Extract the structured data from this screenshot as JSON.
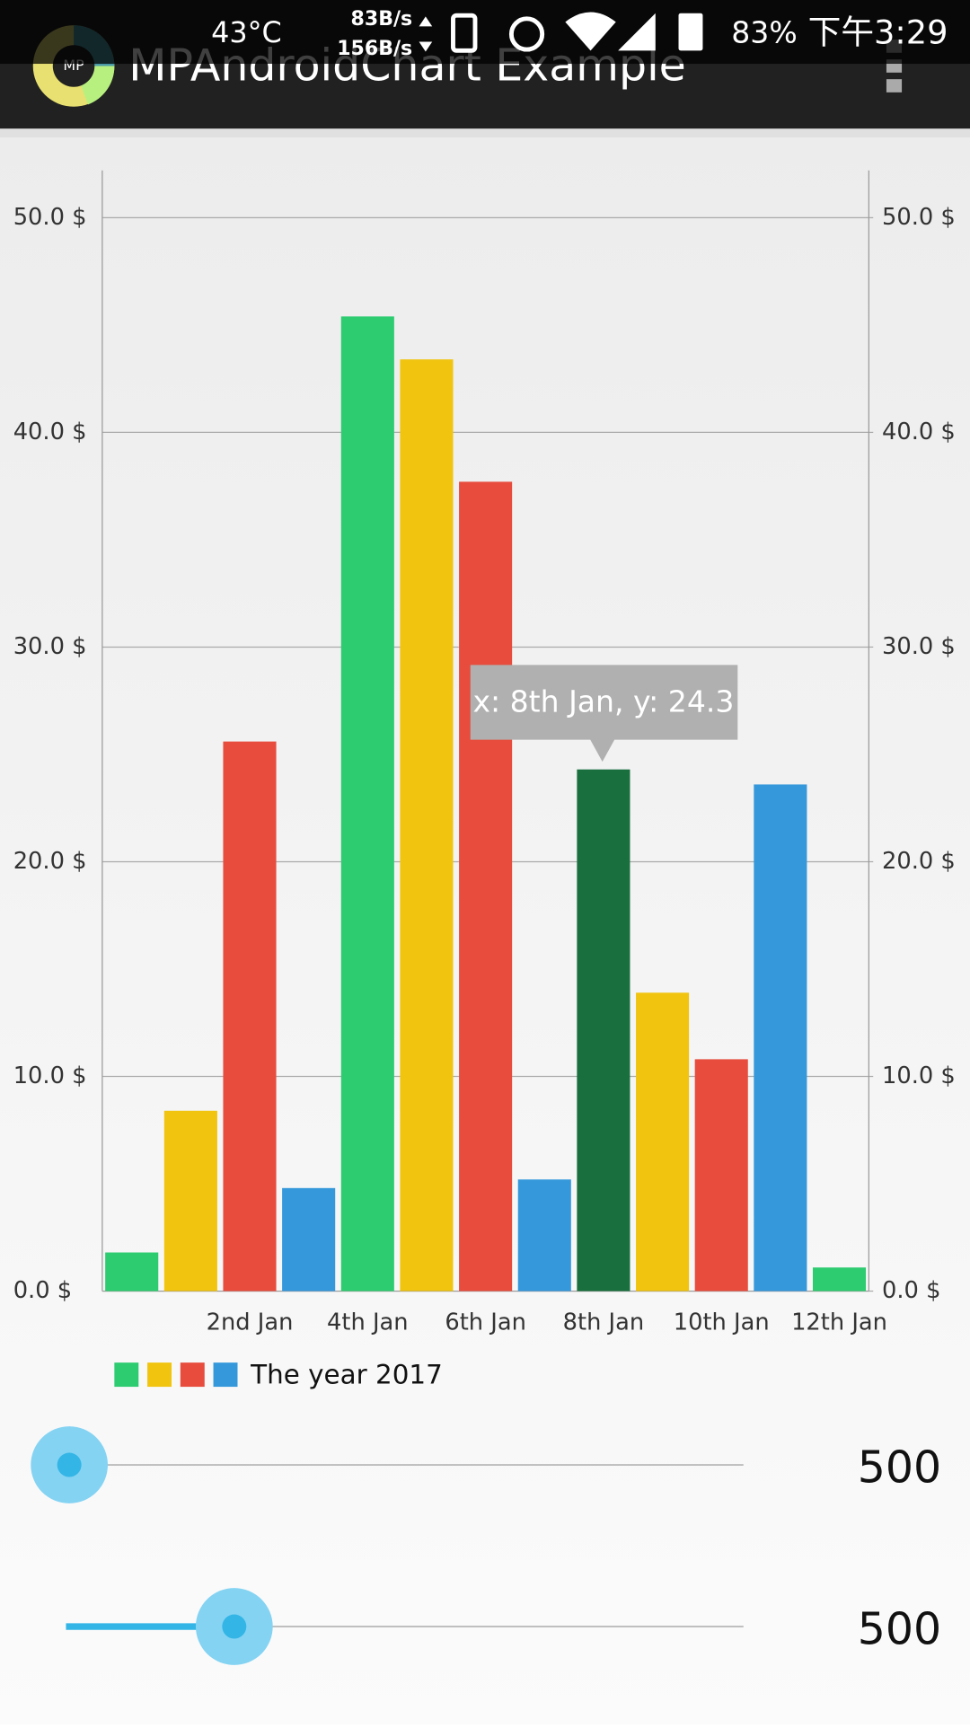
{
  "status_bar": {
    "temperature": "43°C",
    "upload": "83B/s",
    "download": "156B/s",
    "battery": "83%",
    "time": "下午3:29"
  },
  "app_bar": {
    "icon_text": "MP",
    "title": "MPAndroidChart Example"
  },
  "chart_data": {
    "type": "bar",
    "categories": [
      null,
      null,
      "2nd Jan",
      null,
      "4th Jan",
      null,
      "6th Jan",
      null,
      "8th Jan",
      null,
      "10th Jan",
      null,
      "12th Jan"
    ],
    "series": [
      {
        "name": "The year 2017",
        "colors": [
          "#2ecc71",
          "#f1c40f",
          "#e74c3c",
          "#3498db"
        ],
        "values": [
          1.8,
          8.4,
          25.6,
          4.8,
          45.4,
          43.4,
          37.7,
          5.2,
          24.3,
          13.9,
          10.8,
          23.6,
          1.1
        ]
      }
    ],
    "highlight": {
      "index": 8,
      "color": "#1a6f3e",
      "text": "x: 8th Jan, y: 24.3"
    },
    "ylim": [
      0,
      52.2
    ],
    "yticks": [
      {
        "value": 0,
        "label": "0.0 $"
      },
      {
        "value": 10,
        "label": "10.0 $"
      },
      {
        "value": 20,
        "label": "20.0 $"
      },
      {
        "value": 30,
        "label": "30.0 $"
      },
      {
        "value": 40,
        "label": "40.0 $"
      },
      {
        "value": 50,
        "label": "50.0 $"
      }
    ],
    "y2lim": [
      0,
      52.2
    ],
    "y2ticks": [
      {
        "value": 0,
        "label": "0.0 $"
      },
      {
        "value": 10,
        "label": "10.0 $"
      },
      {
        "value": 20,
        "label": "20.0 $"
      },
      {
        "value": 30,
        "label": "30.0 $"
      },
      {
        "value": 40,
        "label": "40.0 $"
      },
      {
        "value": 50,
        "label": "50.0 $"
      }
    ],
    "grid": true
  },
  "sliders": [
    {
      "value_text": "500"
    },
    {
      "value_text": "500"
    }
  ]
}
